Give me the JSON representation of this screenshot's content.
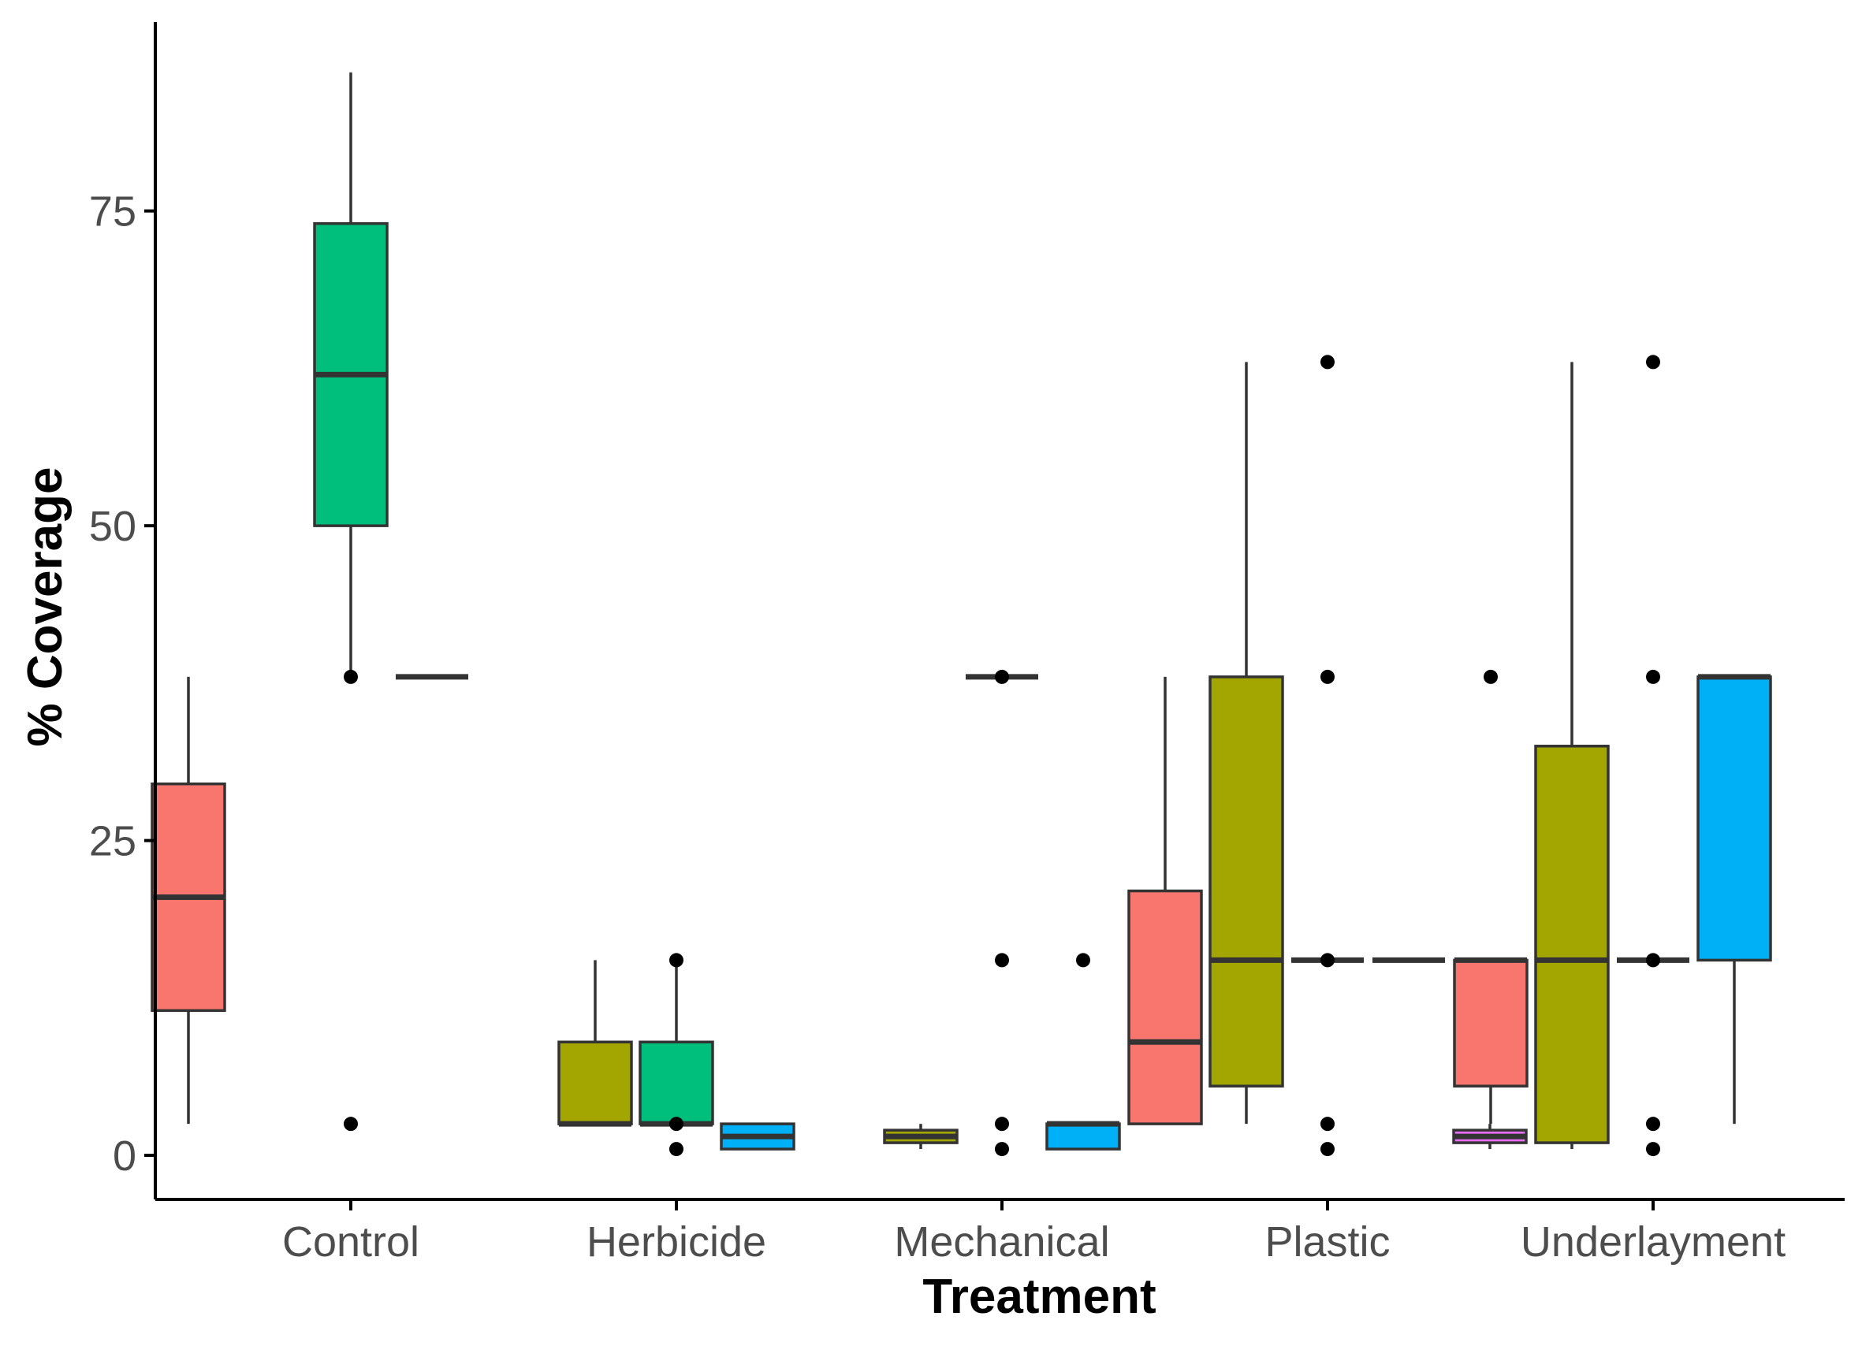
{
  "chart_data": {
    "type": "boxplot",
    "title": "",
    "xlabel": "Treatment",
    "ylabel": "% Coverage",
    "categories": [
      "Control",
      "Herbicide",
      "Mechanical",
      "Plastic",
      "Underlayment"
    ],
    "yticks": [
      0,
      25,
      50,
      75
    ],
    "ylim": [
      -3.5,
      90
    ],
    "grid": false,
    "legend": "none",
    "slots_per_category": 5,
    "series_colors": [
      "#F8766D",
      "#A3A500",
      "#00BF7D",
      "#00B0F6",
      "#E76BF3"
    ],
    "boxes": [
      {
        "category": "Control",
        "slot": 0,
        "whisker_low": 2.5,
        "q1": 11.5,
        "median": 20.5,
        "q3": 29.5,
        "whisker_high": 38,
        "outliers": []
      },
      {
        "category": "Control",
        "slot": 2,
        "whisker_low": 38,
        "q1": 50,
        "median": 62,
        "q3": 74,
        "whisker_high": 86,
        "outliers": [
          38,
          2.5
        ]
      },
      {
        "category": "Control",
        "slot": 3,
        "whisker_low": 38,
        "q1": 38,
        "median": 38,
        "q3": 38,
        "whisker_high": 38,
        "outliers": []
      },
      {
        "category": "Herbicide",
        "slot": 1,
        "whisker_low": 2.5,
        "q1": 2.5,
        "median": 2.5,
        "q3": 9,
        "whisker_high": 15.5,
        "outliers": []
      },
      {
        "category": "Herbicide",
        "slot": 2,
        "whisker_low": 2.5,
        "q1": 2.5,
        "median": 2.5,
        "q3": 9,
        "whisker_high": 15.5,
        "outliers": [
          15.5,
          2.5,
          0.5
        ]
      },
      {
        "category": "Herbicide",
        "slot": 3,
        "whisker_low": 0.5,
        "q1": 0.5,
        "median": 1.5,
        "q3": 2.5,
        "whisker_high": 2.5,
        "outliers": []
      },
      {
        "category": "Mechanical",
        "slot": 1,
        "whisker_low": 0.5,
        "q1": 1,
        "median": 1.5,
        "q3": 2,
        "whisker_high": 2.5,
        "outliers": []
      },
      {
        "category": "Mechanical",
        "slot": 2,
        "whisker_low": 38,
        "q1": 38,
        "median": 38,
        "q3": 38,
        "whisker_high": 38,
        "outliers": [
          38,
          15.5,
          2.5,
          0.5
        ]
      },
      {
        "category": "Mechanical",
        "slot": 3,
        "whisker_low": 0.5,
        "q1": 0.5,
        "median": 2.5,
        "q3": 2.5,
        "whisker_high": 2.5,
        "outliers": [
          15.5
        ]
      },
      {
        "category": "Plastic",
        "slot": 0,
        "whisker_low": 2.5,
        "q1": 2.5,
        "median": 9,
        "q3": 21,
        "whisker_high": 38,
        "outliers": []
      },
      {
        "category": "Plastic",
        "slot": 1,
        "whisker_low": 2.5,
        "q1": 5.5,
        "median": 15.5,
        "q3": 38,
        "whisker_high": 63,
        "outliers": []
      },
      {
        "category": "Plastic",
        "slot": 2,
        "whisker_low": 15.5,
        "q1": 15.5,
        "median": 15.5,
        "q3": 15.5,
        "whisker_high": 15.5,
        "outliers": [
          63,
          38,
          15.5,
          2.5,
          0.5
        ]
      },
      {
        "category": "Plastic",
        "slot": 3,
        "whisker_low": 15.5,
        "q1": 15.5,
        "median": 15.5,
        "q3": 15.5,
        "whisker_high": 15.5,
        "outliers": []
      },
      {
        "category": "Plastic",
        "slot": 4,
        "whisker_low": 0.5,
        "q1": 1,
        "median": 1.5,
        "q3": 2,
        "whisker_high": 2.5,
        "outliers": []
      },
      {
        "category": "Underlayment",
        "slot": 0,
        "whisker_low": 2.5,
        "q1": 5.5,
        "median": 15.5,
        "q3": 15.5,
        "whisker_high": 15.5,
        "outliers": [
          38
        ]
      },
      {
        "category": "Underlayment",
        "slot": 1,
        "whisker_low": 0.5,
        "q1": 1,
        "median": 15.5,
        "q3": 32.5,
        "whisker_high": 63,
        "outliers": []
      },
      {
        "category": "Underlayment",
        "slot": 2,
        "whisker_low": 15.5,
        "q1": 15.5,
        "median": 15.5,
        "q3": 15.5,
        "whisker_high": 15.5,
        "outliers": [
          63,
          38,
          15.5,
          2.5,
          0.5
        ]
      },
      {
        "category": "Underlayment",
        "slot": 3,
        "whisker_low": 2.5,
        "q1": 15.5,
        "median": 38,
        "q3": 38,
        "whisker_high": 38,
        "outliers": []
      }
    ]
  }
}
